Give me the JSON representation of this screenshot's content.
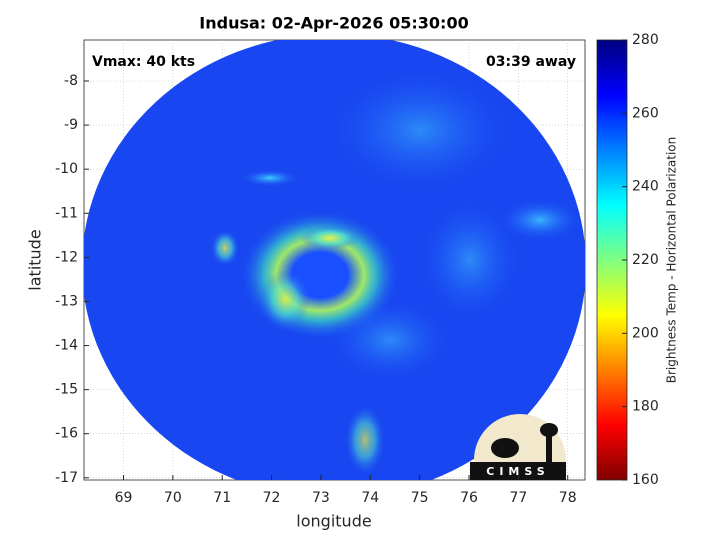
{
  "chart_data": {
    "type": "heatmap",
    "title": "Indusa: 02-Apr-2026 05:30:00",
    "annotations": [
      "Vmax: 40 kts",
      "03:39 away"
    ],
    "xlabel": "longitude",
    "ylabel": "latitude",
    "xlim": [
      68.2,
      78.35
    ],
    "xticks": [
      69,
      70,
      71,
      72,
      73,
      74,
      75,
      76,
      77,
      78
    ],
    "ylim": [
      -17.05,
      -7.07
    ],
    "yticks": [
      -17,
      -16,
      -15,
      -14,
      -13,
      -12,
      -11,
      -10,
      -9,
      -8
    ],
    "grid": true,
    "colormap": "jet",
    "colorbar_label": "Brightness Temp - Horizontal Polarization",
    "clim": [
      160,
      280
    ],
    "cticks": [
      160,
      180,
      200,
      220,
      240,
      260,
      280
    ],
    "logo_text": "CIMSS"
  }
}
